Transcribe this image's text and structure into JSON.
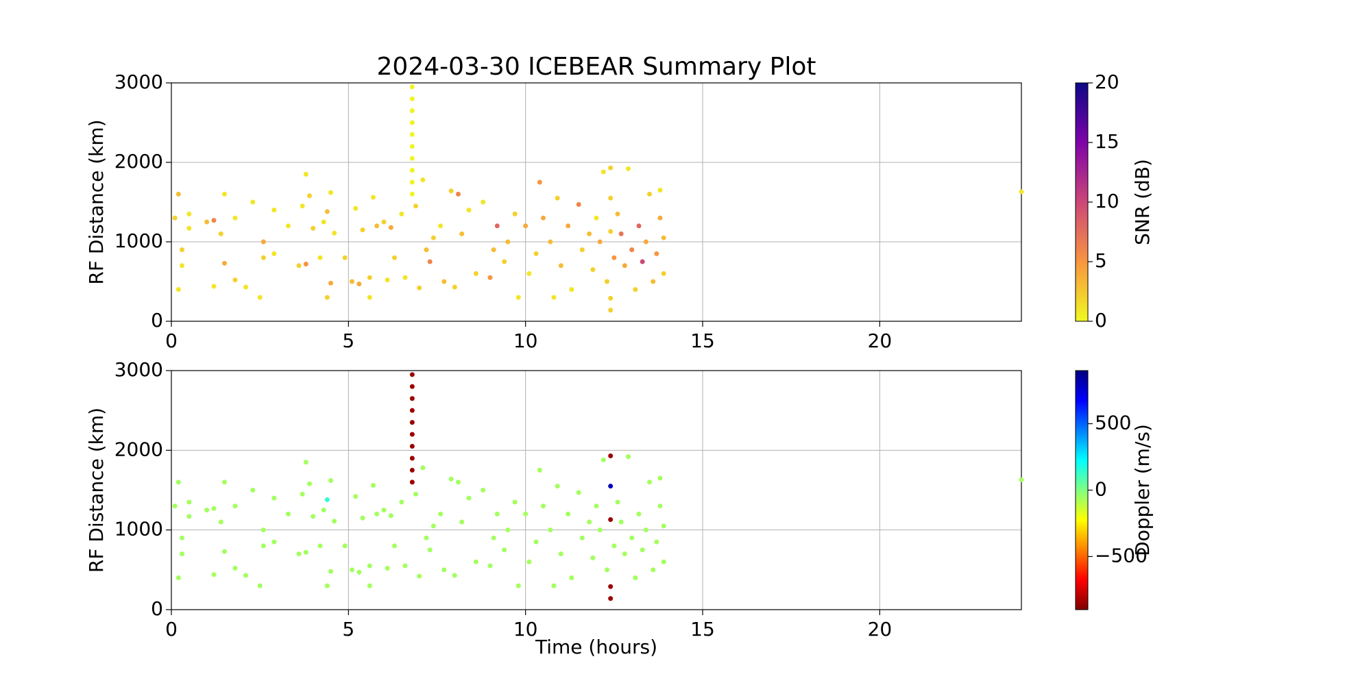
{
  "chart_data": [
    {
      "type": "scatter",
      "title": "2024-03-30 ICEBEAR Summary Plot",
      "ylabel": "RF Distance (km)",
      "xlim": [
        0,
        24
      ],
      "xticks": [
        0,
        5,
        10,
        15,
        20
      ],
      "ylim": [
        0,
        3000
      ],
      "yticks": [
        0,
        1000,
        2000,
        3000
      ],
      "grid": true,
      "colorbar": {
        "label": "SNR (dB)",
        "colormap": "plasma_r",
        "lim": [
          0,
          20
        ],
        "ticks": [
          0,
          5,
          10,
          15,
          20
        ]
      },
      "x": [
        0.1,
        0.2,
        0.2,
        0.3,
        0.3,
        0.5,
        0.5,
        1.0,
        1.2,
        1.2,
        1.4,
        1.5,
        1.5,
        1.8,
        1.8,
        2.1,
        2.3,
        2.5,
        2.6,
        2.6,
        2.9,
        2.9,
        3.3,
        3.6,
        3.7,
        3.8,
        3.8,
        3.9,
        4.0,
        4.2,
        4.3,
        4.4,
        4.4,
        4.5,
        4.5,
        4.6,
        4.9,
        5.1,
        5.2,
        5.3,
        5.4,
        5.6,
        5.6,
        5.7,
        5.8,
        6.0,
        6.1,
        6.2,
        6.3,
        6.5,
        6.6,
        6.9,
        7.0,
        7.1,
        7.2,
        7.3,
        7.4,
        7.6,
        7.7,
        7.9,
        8.0,
        8.1,
        8.2,
        8.4,
        8.6,
        8.8,
        9.0,
        9.1,
        9.2,
        9.4,
        9.5,
        9.7,
        9.8,
        10.0,
        10.1,
        10.3,
        10.4,
        10.5,
        10.7,
        10.8,
        10.9,
        11.0,
        11.2,
        11.3,
        11.5,
        11.6,
        11.8,
        11.9,
        12.0,
        12.1,
        12.2,
        12.3,
        12.5,
        12.6,
        12.7,
        12.8,
        12.9,
        13.0,
        13.1,
        13.2,
        13.3,
        13.4,
        13.5,
        13.6,
        13.7,
        13.8,
        13.9,
        13.9,
        13.8,
        24.0,
        6.8,
        6.8,
        6.8,
        6.8,
        6.8,
        6.8,
        6.8,
        6.8,
        6.8,
        6.8,
        12.4,
        12.4,
        12.4,
        12.4,
        12.4
      ],
      "values": [
        1300,
        1600,
        400,
        900,
        700,
        1350,
        1170,
        1250,
        1270,
        440,
        1100,
        730,
        1600,
        1300,
        520,
        430,
        1500,
        300,
        800,
        1000,
        850,
        1400,
        1200,
        700,
        1450,
        1850,
        720,
        1580,
        1170,
        800,
        1250,
        300,
        1380,
        480,
        1620,
        1110,
        800,
        500,
        1420,
        470,
        1150,
        550,
        300,
        1560,
        1200,
        1250,
        520,
        1180,
        800,
        1350,
        550,
        1450,
        420,
        1780,
        900,
        750,
        1050,
        1200,
        500,
        1640,
        430,
        1600,
        1100,
        1400,
        600,
        1500,
        550,
        900,
        1200,
        750,
        1000,
        1350,
        300,
        1200,
        600,
        850,
        1750,
        1300,
        1000,
        300,
        1550,
        700,
        1200,
        400,
        1470,
        900,
        1100,
        650,
        1300,
        1000,
        1880,
        500,
        800,
        1350,
        1100,
        700,
        1920,
        900,
        400,
        1200,
        750,
        1000,
        1600,
        500,
        850,
        1300,
        1050,
        600,
        1650,
        1630,
        1600,
        1750,
        1900,
        2050,
        2200,
        2350,
        2500,
        2650,
        2800,
        2950,
        1930,
        1550,
        1130,
        290,
        140
      ],
      "color_values": [
        2,
        3,
        1,
        2,
        1,
        1,
        1,
        3,
        6,
        1,
        2,
        4,
        1,
        1,
        2,
        1,
        1,
        1,
        2,
        4,
        1,
        1,
        1,
        2,
        1,
        1,
        5,
        2,
        2,
        1,
        1,
        2,
        3,
        4,
        1,
        1,
        2,
        3,
        1,
        4,
        2,
        2,
        1,
        1,
        3,
        2,
        1,
        4,
        2,
        1,
        1,
        2,
        2,
        1,
        3,
        6,
        2,
        1,
        3,
        2,
        2,
        6,
        3,
        1,
        2,
        1,
        5,
        3,
        8,
        2,
        3,
        2,
        1,
        4,
        1,
        2,
        5,
        4,
        3,
        1,
        2,
        3,
        4,
        1,
        6,
        2,
        3,
        2,
        1,
        4,
        1,
        2,
        5,
        3,
        7,
        4,
        1,
        6,
        2,
        8,
        10,
        4,
        2,
        3,
        5,
        4,
        3,
        2,
        1,
        1,
        0.3,
        0.3,
        0.3,
        0.3,
        0.3,
        0.3,
        0.3,
        0.3,
        0.3,
        0.3,
        2,
        2,
        2,
        2,
        2
      ]
    },
    {
      "type": "scatter",
      "ylabel": "RF Distance (km)",
      "xlabel": "Time (hours)",
      "xlim": [
        0,
        24
      ],
      "xticks": [
        0,
        5,
        10,
        15,
        20
      ],
      "ylim": [
        0,
        3000
      ],
      "yticks": [
        0,
        1000,
        2000,
        3000
      ],
      "grid": true,
      "colorbar": {
        "label": "Doppler (m/s)",
        "colormap": "jet_r",
        "lim": [
          -900,
          900
        ],
        "ticks": [
          {
            "value": -500,
            "label": "−500"
          },
          0,
          500
        ]
      },
      "x": [
        0.1,
        0.2,
        0.2,
        0.3,
        0.3,
        0.5,
        0.5,
        1.0,
        1.2,
        1.2,
        1.4,
        1.5,
        1.5,
        1.8,
        1.8,
        2.1,
        2.3,
        2.5,
        2.6,
        2.6,
        2.9,
        2.9,
        3.3,
        3.6,
        3.7,
        3.8,
        3.8,
        3.9,
        4.0,
        4.2,
        4.3,
        4.4,
        4.4,
        4.5,
        4.5,
        4.6,
        4.9,
        5.1,
        5.2,
        5.3,
        5.4,
        5.6,
        5.6,
        5.7,
        5.8,
        6.0,
        6.1,
        6.2,
        6.3,
        6.5,
        6.6,
        6.9,
        7.0,
        7.1,
        7.2,
        7.3,
        7.4,
        7.6,
        7.7,
        7.9,
        8.0,
        8.1,
        8.2,
        8.4,
        8.6,
        8.8,
        9.0,
        9.1,
        9.2,
        9.4,
        9.5,
        9.7,
        9.8,
        10.0,
        10.1,
        10.3,
        10.4,
        10.5,
        10.7,
        10.8,
        10.9,
        11.0,
        11.2,
        11.3,
        11.5,
        11.6,
        11.8,
        11.9,
        12.0,
        12.1,
        12.2,
        12.3,
        12.5,
        12.6,
        12.7,
        12.8,
        12.9,
        13.0,
        13.1,
        13.2,
        13.3,
        13.4,
        13.5,
        13.6,
        13.7,
        13.8,
        13.9,
        13.9,
        13.8,
        24.0,
        6.8,
        6.8,
        6.8,
        6.8,
        6.8,
        6.8,
        6.8,
        6.8,
        6.8,
        6.8,
        12.4,
        12.4,
        12.4,
        12.4,
        12.4
      ],
      "values": [
        1300,
        1600,
        400,
        900,
        700,
        1350,
        1170,
        1250,
        1270,
        440,
        1100,
        730,
        1600,
        1300,
        520,
        430,
        1500,
        300,
        800,
        1000,
        850,
        1400,
        1200,
        700,
        1450,
        1850,
        720,
        1580,
        1170,
        800,
        1250,
        300,
        1380,
        480,
        1620,
        1110,
        800,
        500,
        1420,
        470,
        1150,
        550,
        300,
        1560,
        1200,
        1250,
        520,
        1180,
        800,
        1350,
        550,
        1450,
        420,
        1780,
        900,
        750,
        1050,
        1200,
        500,
        1640,
        430,
        1600,
        1100,
        1400,
        600,
        1500,
        550,
        900,
        1200,
        750,
        1000,
        1350,
        300,
        1200,
        600,
        850,
        1750,
        1300,
        1000,
        300,
        1550,
        700,
        1200,
        400,
        1470,
        900,
        1100,
        650,
        1300,
        1000,
        1880,
        500,
        800,
        1350,
        1100,
        700,
        1920,
        900,
        400,
        1200,
        750,
        1000,
        1600,
        500,
        850,
        1300,
        1050,
        600,
        1650,
        1630,
        1600,
        1750,
        1900,
        2050,
        2200,
        2350,
        2500,
        2650,
        2800,
        2950,
        1930,
        1550,
        1130,
        290,
        140
      ],
      "color_values": [
        -60,
        -60,
        -60,
        -60,
        -60,
        -60,
        -60,
        -60,
        -60,
        -60,
        -60,
        -60,
        -60,
        -60,
        -60,
        -60,
        -60,
        -60,
        -60,
        -60,
        -60,
        -60,
        -60,
        -60,
        -60,
        -60,
        -60,
        -60,
        -60,
        -60,
        -60,
        -60,
        150,
        -60,
        -60,
        -60,
        -60,
        -60,
        -60,
        -60,
        -60,
        -60,
        -60,
        -60,
        -60,
        -60,
        -60,
        -60,
        -60,
        -60,
        -60,
        -60,
        -60,
        -60,
        -60,
        -60,
        -60,
        -60,
        -60,
        -60,
        -60,
        -60,
        -60,
        -60,
        -60,
        -60,
        -60,
        -60,
        -60,
        -60,
        -60,
        -60,
        -60,
        -60,
        -60,
        -60,
        -60,
        -60,
        -60,
        -60,
        -60,
        -60,
        -60,
        -60,
        -60,
        -60,
        -60,
        -60,
        -60,
        -60,
        -60,
        -60,
        -60,
        -60,
        -60,
        -60,
        -60,
        -60,
        -60,
        -60,
        -60,
        -60,
        -60,
        -60,
        -60,
        -60,
        -60,
        -60,
        -60,
        -60,
        -850,
        -850,
        -850,
        -850,
        -850,
        -850,
        -850,
        -850,
        -850,
        -850,
        -850,
        800,
        -850,
        -850,
        -850
      ]
    }
  ]
}
